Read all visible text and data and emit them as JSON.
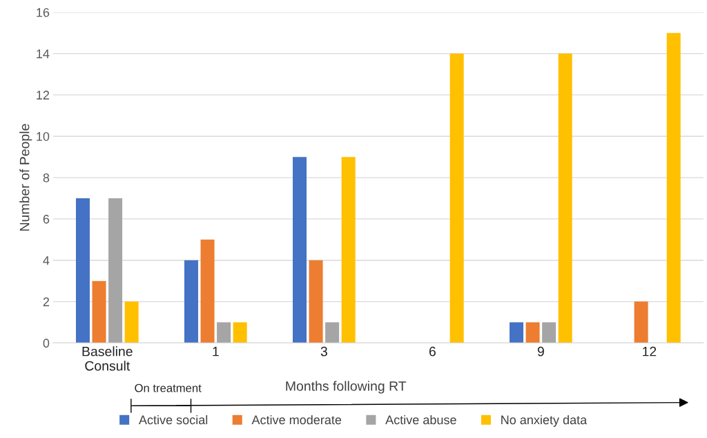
{
  "chart_data": {
    "type": "bar",
    "xlabel": "Months following RT",
    "ylabel": "Number of People",
    "categories": [
      "Baseline\nConsult",
      "1",
      "3",
      "6",
      "9",
      "12"
    ],
    "series": [
      {
        "name": "Active social",
        "color": "#4472c4",
        "values": [
          7,
          4,
          9,
          0,
          1,
          0
        ]
      },
      {
        "name": "Active moderate",
        "color": "#ed7d31",
        "values": [
          3,
          5,
          4,
          0,
          1,
          2
        ]
      },
      {
        "name": "Active abuse",
        "color": "#a5a5a5",
        "values": [
          7,
          1,
          1,
          0,
          1,
          0
        ]
      },
      {
        "name": "No anxiety data",
        "color": "#ffc000",
        "values": [
          2,
          1,
          9,
          14,
          14,
          15
        ]
      }
    ],
    "ylim": [
      0,
      16
    ],
    "yticks": [
      0,
      2,
      4,
      6,
      8,
      10,
      12,
      14,
      16
    ],
    "grid": "y",
    "legend": "bottom",
    "annotations": [
      "On treatment"
    ]
  }
}
